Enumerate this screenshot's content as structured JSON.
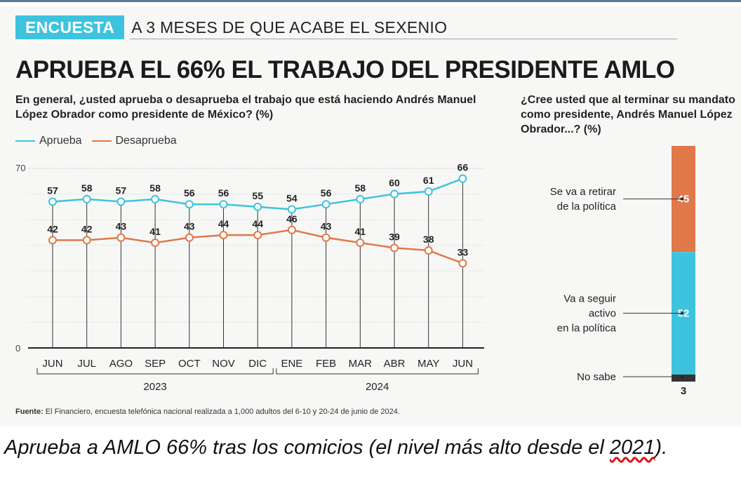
{
  "kicker": {
    "tag": "ENCUESTA",
    "text": "A 3 MESES DE QUE ACABE EL SEXENIO"
  },
  "headline": "APRUEBA EL 66% EL TRABAJO DEL PRESIDENTE AMLO",
  "colors": {
    "aprueba": "#3ec3df",
    "desaprueba": "#e0784a",
    "no_sabe": "#333333",
    "accent": "#3ec3df"
  },
  "chart_data": [
    {
      "type": "line",
      "title": "En general, ¿usted aprueba o desaprueba el trabajo que está haciendo Andrés Manuel López Obrador como presidente de México? (%)",
      "categories": [
        "JUN",
        "JUL",
        "AGO",
        "SEP",
        "OCT",
        "NOV",
        "DIC",
        "ENE",
        "FEB",
        "MAR",
        "ABR",
        "MAY",
        "JUN"
      ],
      "year_groups": [
        {
          "label": "2023",
          "from": 0,
          "to": 6
        },
        {
          "label": "2024",
          "from": 7,
          "to": 12
        }
      ],
      "series": [
        {
          "name": "Aprueba",
          "values": [
            57,
            58,
            57,
            58,
            56,
            56,
            55,
            54,
            56,
            58,
            60,
            61,
            66
          ]
        },
        {
          "name": "Desaprueba",
          "values": [
            42,
            42,
            43,
            41,
            43,
            44,
            44,
            46,
            43,
            41,
            39,
            38,
            33
          ]
        }
      ],
      "ylim": [
        0,
        70
      ],
      "yticks": [
        "0",
        "70"
      ],
      "grid": true,
      "legend": "top-left"
    },
    {
      "type": "bar",
      "stacked": true,
      "title": "¿Cree usted que al terminar su mandato como presidente, Andrés Manuel López Obrador...? (%)",
      "segments": [
        {
          "label": "Se va a retirar de la política",
          "value": 45
        },
        {
          "label": "Va a seguir activo en la política",
          "value": 52
        },
        {
          "label": "No sabe",
          "value": 3
        }
      ]
    }
  ],
  "source": {
    "label": "Fuente:",
    "text": "El Financiero, encuesta telefónica nacional realizada a 1,000 adultos del 6-10 y 20-24 de junio de 2024."
  },
  "caption": {
    "before": "Aprueba a AMLO 66% tras los comicios (el nivel más alto desde el ",
    "year": "2021",
    "after": ")."
  }
}
